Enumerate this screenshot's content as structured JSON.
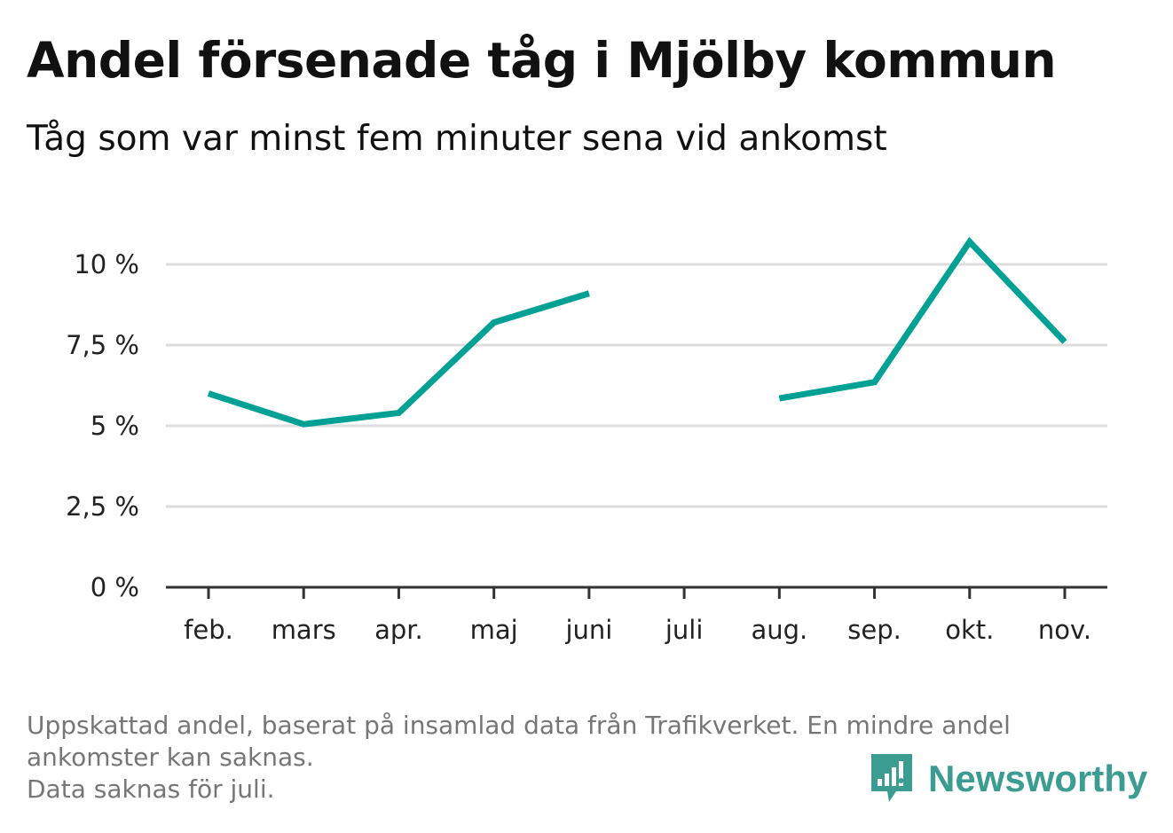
{
  "header": {
    "title": "Andel försenade tåg i Mjölby kommun",
    "subtitle": "Tåg som var minst fem minuter sena vid ankomst"
  },
  "footnote": {
    "lines": [
      "Uppskattad andel, baserat på insamlad data från Trafikverket. En mindre andel",
      "ankomster kan saknas.",
      "Data saknas för juli."
    ]
  },
  "brand": {
    "name": "Newsworthy",
    "icon": "bar-chart-speech-bubble-icon",
    "color": "#3b9c91"
  },
  "colors": {
    "series": "#00a195",
    "grid": "#dddddd",
    "axis": "#333333",
    "text": "#111111",
    "footnote": "#767676"
  },
  "chart_data": {
    "type": "line",
    "categories": [
      "feb.",
      "mars",
      "apr.",
      "maj",
      "juni",
      "juli",
      "aug.",
      "sep.",
      "okt.",
      "nov."
    ],
    "series": [
      {
        "values": [
          6.0,
          5.05,
          5.4,
          8.2,
          9.1,
          null,
          5.85,
          6.35,
          10.7,
          7.6
        ]
      }
    ],
    "yticks": [
      0,
      2.5,
      5,
      7.5,
      10
    ],
    "ytick_labels": [
      "0 %",
      "2,5 %",
      "5 %",
      "7,5 %",
      "10 %"
    ],
    "ylim": [
      0,
      11
    ],
    "grid": true,
    "xlabel": "",
    "ylabel": ""
  }
}
